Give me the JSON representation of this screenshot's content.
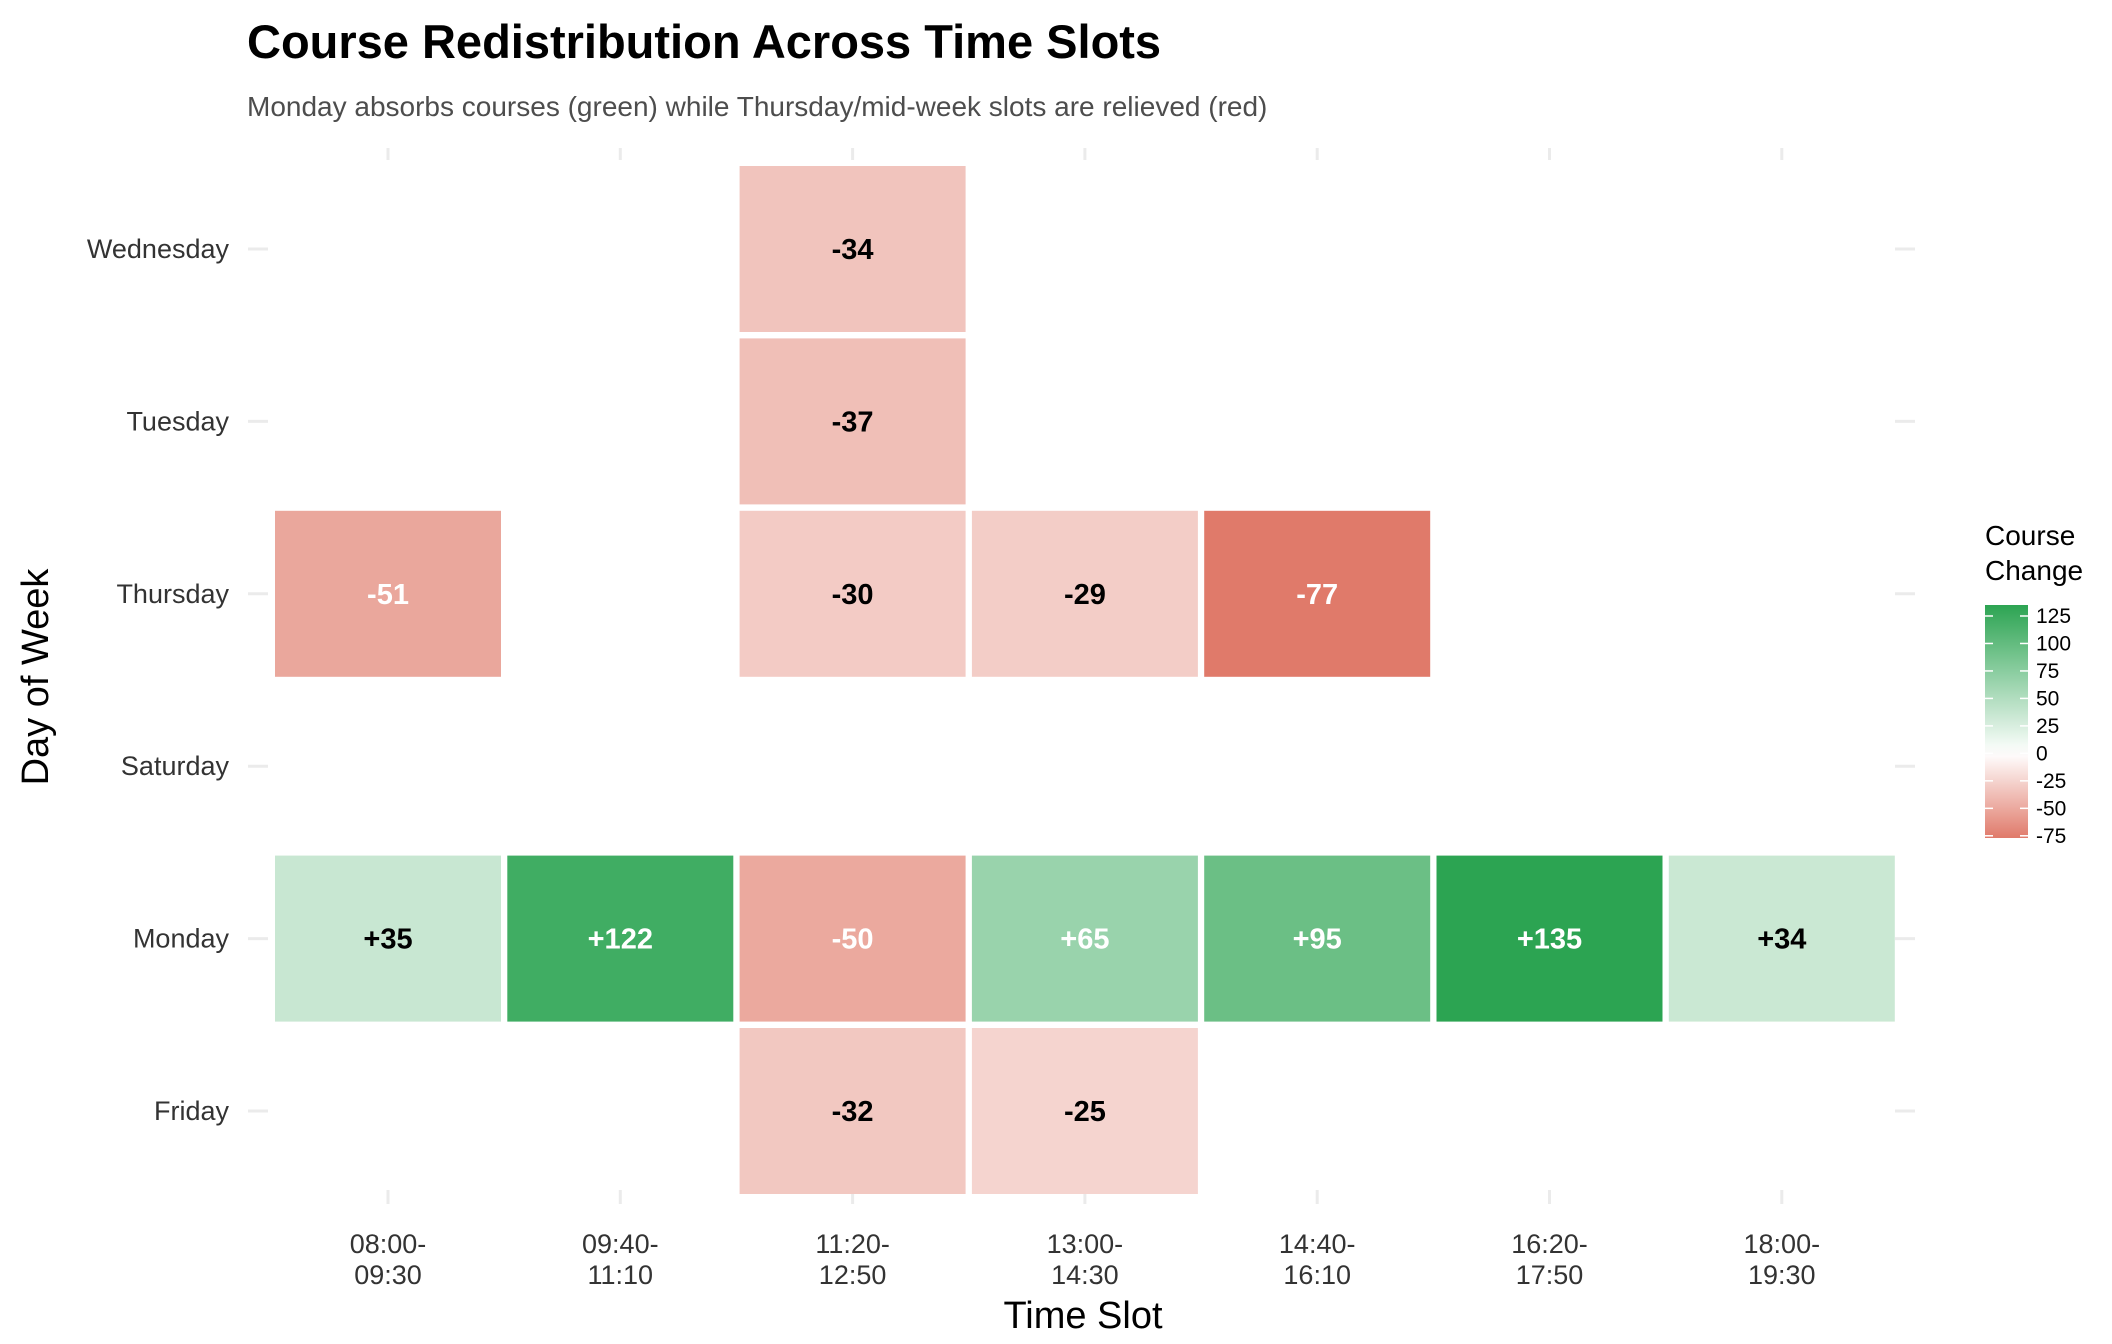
{
  "chart_data": {
    "type": "heatmap",
    "title": "Course Redistribution Across Time Slots",
    "subtitle": "Monday absorbs courses (green) while Thursday/mid-week slots are relieved (red)",
    "xlabel": "Time Slot",
    "ylabel": "Day of Week",
    "x_categories": [
      [
        "08:00-",
        "09:30"
      ],
      [
        "09:40-",
        "11:10"
      ],
      [
        "11:20-",
        "12:50"
      ],
      [
        "13:00-",
        "14:30"
      ],
      [
        "14:40-",
        "16:10"
      ],
      [
        "16:20-",
        "17:50"
      ],
      [
        "18:00-",
        "19:30"
      ]
    ],
    "y_categories": [
      "Wednesday",
      "Tuesday",
      "Thursday",
      "Saturday",
      "Monday",
      "Friday"
    ],
    "cells": [
      {
        "day": "Wednesday",
        "slot": 2,
        "value": -34,
        "label": "-34"
      },
      {
        "day": "Tuesday",
        "slot": 2,
        "value": -37,
        "label": "-37"
      },
      {
        "day": "Thursday",
        "slot": 0,
        "value": -51,
        "label": "-51"
      },
      {
        "day": "Thursday",
        "slot": 2,
        "value": -30,
        "label": "-30"
      },
      {
        "day": "Thursday",
        "slot": 3,
        "value": -29,
        "label": "-29"
      },
      {
        "day": "Thursday",
        "slot": 4,
        "value": -77,
        "label": "-77"
      },
      {
        "day": "Monday",
        "slot": 0,
        "value": 35,
        "label": "+35"
      },
      {
        "day": "Monday",
        "slot": 1,
        "value": 122,
        "label": "+122"
      },
      {
        "day": "Monday",
        "slot": 2,
        "value": -50,
        "label": "-50"
      },
      {
        "day": "Monday",
        "slot": 3,
        "value": 65,
        "label": "+65"
      },
      {
        "day": "Monday",
        "slot": 4,
        "value": 95,
        "label": "+95"
      },
      {
        "day": "Monday",
        "slot": 5,
        "value": 135,
        "label": "+135"
      },
      {
        "day": "Monday",
        "slot": 6,
        "value": 34,
        "label": "+34"
      },
      {
        "day": "Friday",
        "slot": 2,
        "value": -32,
        "label": "-32"
      },
      {
        "day": "Friday",
        "slot": 3,
        "value": -25,
        "label": "-25"
      }
    ],
    "color_scale": {
      "low_color": "#e07a6a",
      "mid_color": "#ffffff",
      "high_color": "#2ca452",
      "domain": [
        -77,
        0,
        135
      ]
    },
    "legend": {
      "title": [
        "Course",
        "Change"
      ],
      "ticks": [
        {
          "value": 125,
          "label": "125"
        },
        {
          "value": 100,
          "label": "100"
        },
        {
          "value": 75,
          "label": "75"
        },
        {
          "value": 50,
          "label": "50"
        },
        {
          "value": 25,
          "label": "25"
        },
        {
          "value": 0,
          "label": "0"
        },
        {
          "value": -25,
          "label": "-25"
        },
        {
          "value": -50,
          "label": "-50"
        },
        {
          "value": -75,
          "label": "-75"
        }
      ],
      "placement": "right"
    },
    "grid": true,
    "grid_color": "#ebebeb"
  }
}
